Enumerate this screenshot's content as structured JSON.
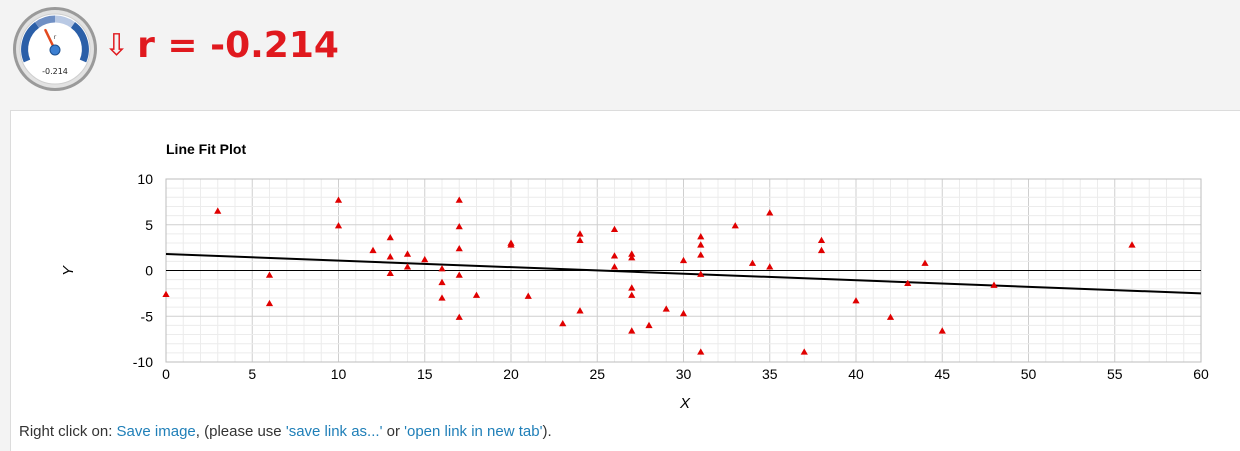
{
  "header": {
    "arrow": "⇩",
    "r_label": "r = -0.214",
    "gauge_value_label": "-0.214",
    "gauge_needle_label": "r",
    "gauge_value": -0.214
  },
  "footer": {
    "prefix": "Right click on: ",
    "save_link": "Save image",
    "middle": ", (please use ",
    "save_as_link": "'save link as...'",
    "or_text": " or ",
    "open_link": "'open link in new tab'",
    "suffix": ")."
  },
  "chart_data": {
    "type": "scatter",
    "title": "Line Fit Plot",
    "xlabel": "X",
    "ylabel": "Y",
    "xlim": [
      0,
      60
    ],
    "ylim": [
      -10,
      10
    ],
    "xticks": [
      0,
      5,
      10,
      15,
      20,
      25,
      30,
      35,
      40,
      45,
      50,
      55,
      60
    ],
    "yticks": [
      10,
      5,
      0,
      -5,
      -10
    ],
    "grid": true,
    "marker_color": "#e00000",
    "trendline": {
      "x": [
        0,
        60
      ],
      "y": [
        1.8,
        -2.5
      ]
    },
    "points": [
      [
        0,
        -2.6
      ],
      [
        3,
        6.5
      ],
      [
        6,
        -0.5
      ],
      [
        6,
        -3.6
      ],
      [
        10,
        7.7
      ],
      [
        10,
        4.9
      ],
      [
        12,
        2.2
      ],
      [
        13,
        3.6
      ],
      [
        13,
        1.5
      ],
      [
        13,
        -0.3
      ],
      [
        14,
        1.8
      ],
      [
        14,
        0.4
      ],
      [
        15,
        1.2
      ],
      [
        16,
        0.2
      ],
      [
        16,
        -1.3
      ],
      [
        16,
        -3.0
      ],
      [
        17,
        7.7
      ],
      [
        17,
        4.8
      ],
      [
        17,
        2.4
      ],
      [
        17,
        -0.5
      ],
      [
        17,
        -5.1
      ],
      [
        18,
        -2.7
      ],
      [
        20,
        3.0
      ],
      [
        20,
        2.8
      ],
      [
        21,
        -2.8
      ],
      [
        23,
        -5.8
      ],
      [
        24,
        4.0
      ],
      [
        24,
        3.3
      ],
      [
        24,
        -4.4
      ],
      [
        26,
        4.5
      ],
      [
        26,
        1.6
      ],
      [
        26,
        0.4
      ],
      [
        27,
        1.8
      ],
      [
        27,
        1.4
      ],
      [
        27,
        -1.9
      ],
      [
        27,
        -2.7
      ],
      [
        27,
        -6.6
      ],
      [
        28,
        -6.0
      ],
      [
        29,
        -4.2
      ],
      [
        30,
        1.1
      ],
      [
        30,
        -4.7
      ],
      [
        31,
        3.7
      ],
      [
        31,
        2.8
      ],
      [
        31,
        1.7
      ],
      [
        31,
        -0.4
      ],
      [
        31,
        -8.9
      ],
      [
        33,
        4.9
      ],
      [
        34,
        0.8
      ],
      [
        35,
        6.3
      ],
      [
        35,
        0.4
      ],
      [
        37,
        -8.9
      ],
      [
        38,
        3.3
      ],
      [
        38,
        2.2
      ],
      [
        40,
        -3.3
      ],
      [
        42,
        -5.1
      ],
      [
        43,
        -1.4
      ],
      [
        44,
        0.8
      ],
      [
        45,
        -6.6
      ],
      [
        48,
        -1.6
      ],
      [
        56,
        2.8
      ]
    ]
  }
}
